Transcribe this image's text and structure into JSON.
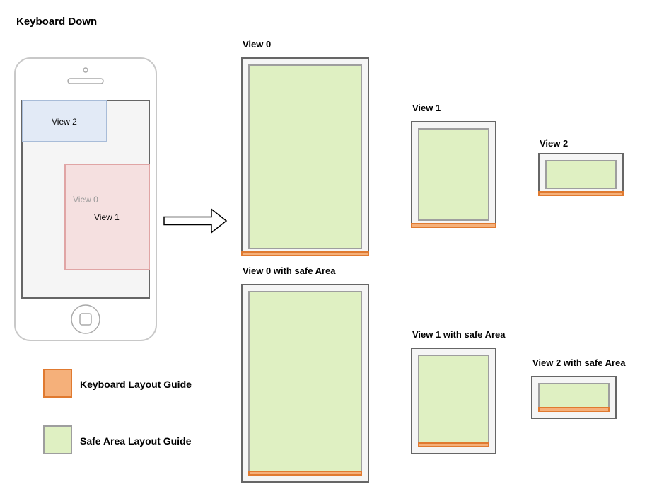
{
  "title": "Keyboard Down",
  "phone": {
    "view0_label": "View 0",
    "view1_label": "View 1",
    "view2_label": "View 2"
  },
  "labels": {
    "view0": "View 0",
    "view1": "View 1",
    "view2": "View 2",
    "view0_safe": "View 0 with safe Area",
    "view1_safe": "View 1 with safe Area",
    "view2_safe": "View 2 with safe Area"
  },
  "legend": {
    "keyboard": "Keyboard Layout Guide",
    "safe_area": "Safe Area Layout Guide"
  },
  "colors": {
    "keyboard_fill": "#f5b07a",
    "keyboard_stroke": "#e07a30",
    "safe_fill": "#dff0c2",
    "safe_stroke": "#9e9e9e",
    "view1_fill": "#f5e0e0",
    "view2_fill": "#e2eaf6"
  }
}
